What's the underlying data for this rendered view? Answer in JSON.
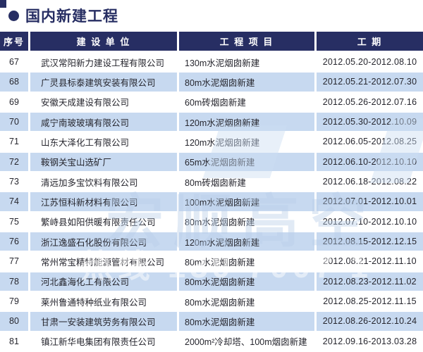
{
  "page": {
    "title": "国内新建工程"
  },
  "table": {
    "columns": [
      {
        "id": "no",
        "label": "序号"
      },
      {
        "id": "company",
        "label": "建 设 单 位"
      },
      {
        "id": "project",
        "label": "工 程 项 目"
      },
      {
        "id": "period",
        "label": "工    期"
      }
    ],
    "rows": [
      {
        "no": "67",
        "company": "武汉常阳新力建设工程有限公司",
        "project": "130m水泥烟囱新建",
        "period": "2012.05.20-2012.08.10"
      },
      {
        "no": "68",
        "company": "广灵县标泰建筑安装有限公司",
        "project": "80m水泥烟囱新建",
        "period": "2012.05.21-2012.07.30"
      },
      {
        "no": "69",
        "company": "安徽天成建设有限公司",
        "project": "60m砖烟囱新建",
        "period": "2012.05.26-2012.07.16"
      },
      {
        "no": "70",
        "company": "咸宁南玻玻璃有限公司",
        "project": "120m水泥烟囱新建",
        "period": "2012.05.30-2012.10.09"
      },
      {
        "no": "71",
        "company": "山东大泽化工有限公司",
        "project": "120m水泥烟囱新建",
        "period": "2012.06.05-2012.08.25"
      },
      {
        "no": "72",
        "company": "鞍钢关宝山选矿厂",
        "project": "65m水泥烟囱新建",
        "period": "2012.06.10-2012.10.10"
      },
      {
        "no": "73",
        "company": "清远加多宝饮料有限公司",
        "project": "80m砖烟囱新建",
        "period": "2012.06.18-2012.08.22"
      },
      {
        "no": "74",
        "company": "江苏恒科新材料有限公司",
        "project": "100m水泥烟囱新建",
        "period": "2012.07.01-2012.10.01"
      },
      {
        "no": "75",
        "company": "繁峙县如阳供暖有限责任公司",
        "project": "80m水泥烟囱新建",
        "period": "2012.07.10-2012.10.10"
      },
      {
        "no": "76",
        "company": "浙江逸盛石化股份有限公司",
        "project": "120m水泥烟囱新建",
        "period": "2012.08.15-2012.12.15"
      },
      {
        "no": "77",
        "company": "常州常宝精特能源管材有限公司",
        "project": "80m水泥烟囱新建",
        "period": "2012.08.21-2012.11.10"
      },
      {
        "no": "78",
        "company": "河北鑫海化工有限公司",
        "project": "80m水泥烟囱新建",
        "period": "2012.08.23-2012.11.02"
      },
      {
        "no": "79",
        "company": "莱州鲁通特种纸业有限公司",
        "project": "80m水泥烟囱新建",
        "period": "2012.08.25-2012.11.15"
      },
      {
        "no": "80",
        "company": "甘肃一安装建筑劳务有限公司",
        "project": "80m水泥烟囱新建",
        "period": "2012.08.26-2012.10.24"
      },
      {
        "no": "81",
        "company": "镇江新华电集团有限责任公司",
        "project": "2000m²冷却塔、100m烟囱新建",
        "period": "2012.09.16-2013.03.28"
      }
    ]
  },
  "watermark": {
    "brand": "宏顺高空",
    "hotline": "热线 139 7007 1"
  },
  "colors": {
    "navy": "#272e63",
    "row_alt": "#c7d9f0",
    "text": "#26262e",
    "watermark": "#b9cfe9"
  }
}
